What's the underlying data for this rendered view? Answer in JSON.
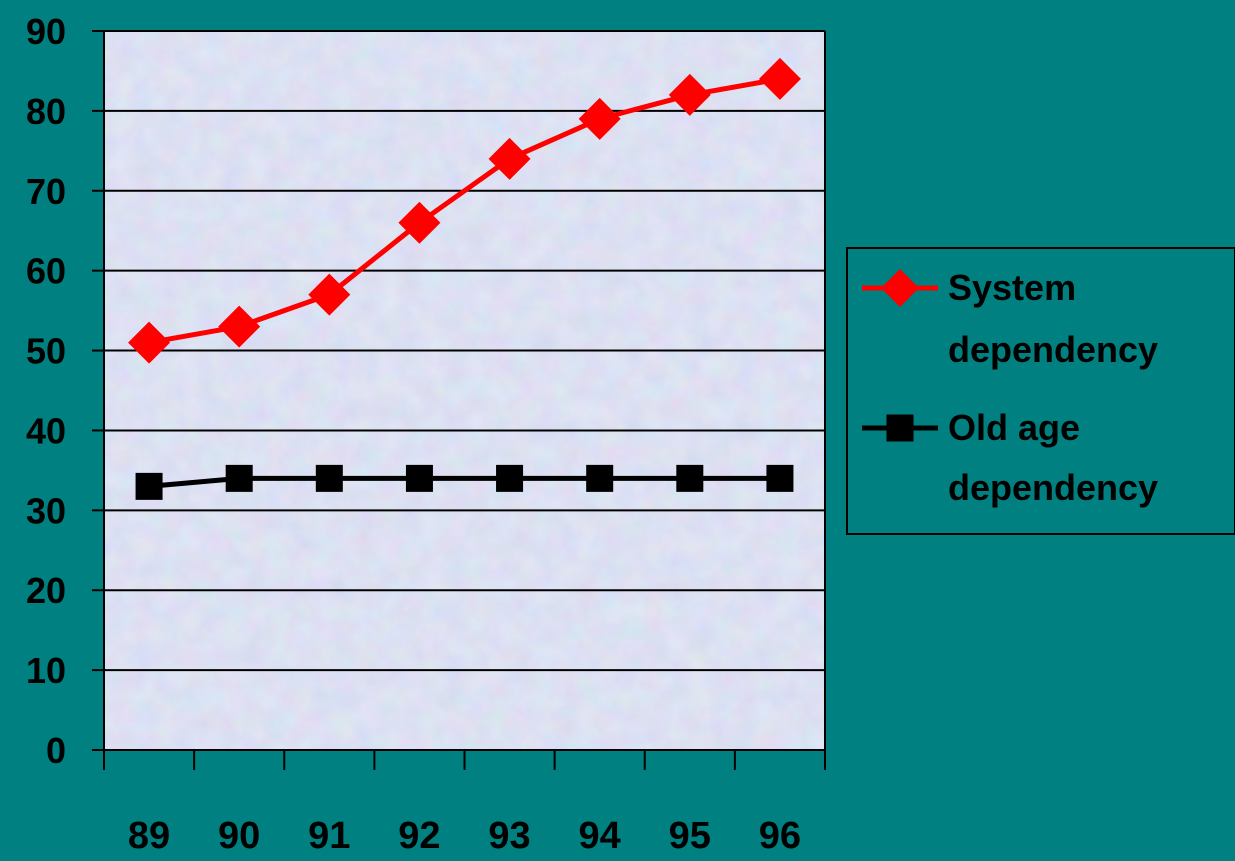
{
  "chart_data": {
    "type": "line",
    "categories": [
      "89",
      "90",
      "91",
      "92",
      "93",
      "94",
      "95",
      "96"
    ],
    "ylim": [
      0,
      90
    ],
    "yticks": [
      0,
      10,
      20,
      30,
      40,
      50,
      60,
      70,
      80,
      90
    ],
    "grid": true,
    "legend_position": "right",
    "title": "",
    "xlabel": "",
    "ylabel": "",
    "series": [
      {
        "name": "System dependency",
        "name_lines": [
          "System",
          "dependency"
        ],
        "color": "#FF0000",
        "marker": "diamond",
        "values": [
          51,
          53,
          57,
          66,
          74,
          79,
          82,
          84
        ]
      },
      {
        "name": "Old age dependency",
        "name_lines": [
          "Old age",
          "dependency"
        ],
        "color": "#000000",
        "marker": "square",
        "values": [
          33,
          34,
          34,
          34,
          34,
          34,
          34,
          34
        ]
      }
    ]
  },
  "colors": {
    "background": "#008080",
    "plot_area": "#C8D2EE",
    "grid": "#000000"
  }
}
